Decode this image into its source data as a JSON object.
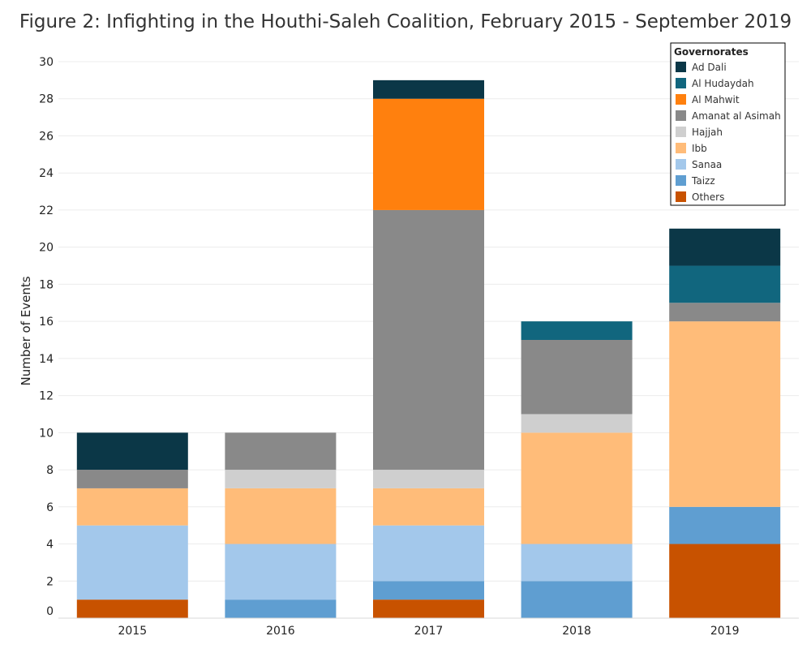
{
  "title": "Figure 2: Infighting in the Houthi-Saleh Coalition, February 2015 - September 2019",
  "chart_data": {
    "type": "bar",
    "stacked": true,
    "title": "Figure 2: Infighting in the Houthi-Saleh Coalition, February 2015 - September 2019",
    "xlabel": "",
    "ylabel": "Number of Events",
    "ylim": [
      0,
      30
    ],
    "yticks": [
      0,
      2,
      4,
      6,
      8,
      10,
      12,
      14,
      16,
      18,
      20,
      22,
      24,
      26,
      28,
      30
    ],
    "grid": true,
    "legend_title": "Governorates",
    "legend_position": "top-right",
    "categories": [
      "2015",
      "2016",
      "2017",
      "2018",
      "2019"
    ],
    "series": [
      {
        "name": "Others",
        "color": "#C85200",
        "values": [
          1,
          0,
          1,
          0,
          4
        ]
      },
      {
        "name": "Taizz",
        "color": "#5F9ED1",
        "values": [
          0,
          1,
          1,
          2,
          2
        ]
      },
      {
        "name": "Sanaa",
        "color": "#A3C8EB",
        "values": [
          4,
          3,
          3,
          2,
          0
        ]
      },
      {
        "name": "Ibb",
        "color": "#FFBC79",
        "values": [
          2,
          3,
          2,
          6,
          10
        ]
      },
      {
        "name": "Hajjah",
        "color": "#CFCFCF",
        "values": [
          0,
          1,
          1,
          1,
          0
        ]
      },
      {
        "name": "Amanat al Asimah",
        "color": "#898989",
        "values": [
          1,
          2,
          14,
          4,
          1
        ]
      },
      {
        "name": "Al Mahwit",
        "color": "#FF800E",
        "values": [
          0,
          0,
          6,
          0,
          0
        ]
      },
      {
        "name": "Al Hudaydah",
        "color": "#11667E",
        "values": [
          0,
          0,
          0,
          1,
          2
        ]
      },
      {
        "name": "Ad Dali",
        "color": "#0B3747",
        "values": [
          2,
          0,
          1,
          0,
          2
        ]
      }
    ],
    "legend_order": [
      "Ad Dali",
      "Al Hudaydah",
      "Al Mahwit",
      "Amanat al Asimah",
      "Hajjah",
      "Ibb",
      "Sanaa",
      "Taizz",
      "Others"
    ]
  }
}
